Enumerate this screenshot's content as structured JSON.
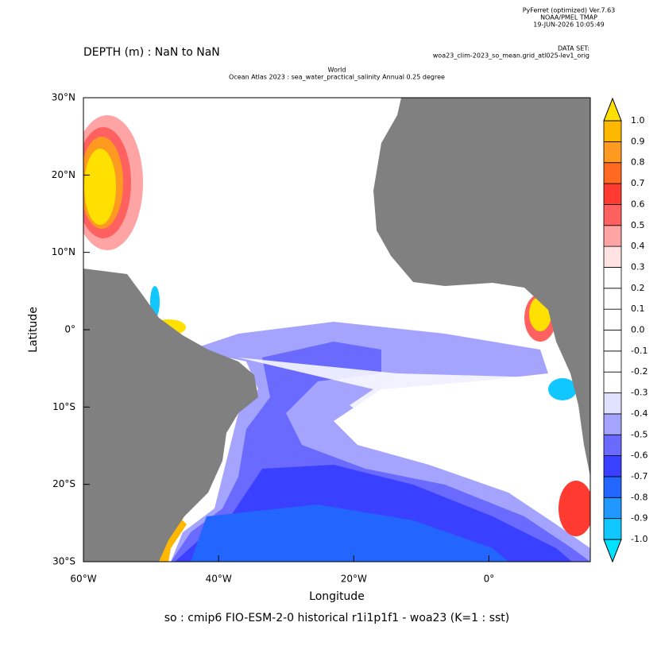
{
  "chart_data": {
    "type": "map",
    "header": {
      "software": "PyFerret (optimized) Ver.7.63",
      "org": "NOAA/PMEL TMAP",
      "timestamp": "19-JUN-2026 10:05:49",
      "dataset_label": "DATA SET:",
      "dataset": "woa23_clim-2023_so_mean.grid_atl025-lev1_orig",
      "depth": "DEPTH (m) : NaN to NaN",
      "title_line1": "World",
      "title_line2": "Ocean Atlas 2023 : sea_water_practical_salinity Annual  0.25 degree"
    },
    "title": "so : cmip6 FIO-ESM-2-0 historical r1i1p1f1 - woa23  (K=1 : sst)",
    "x_label": "Longitude",
    "y_label": "Latitude",
    "xlim": [
      -60,
      15
    ],
    "ylim": [
      -30,
      30
    ],
    "xticks": [
      {
        "value": -60,
        "label": "60°W"
      },
      {
        "value": -40,
        "label": "40°W"
      },
      {
        "value": -20,
        "label": "20°W"
      },
      {
        "value": 0,
        "label": "0°"
      }
    ],
    "yticks": [
      {
        "value": 30,
        "label": "30°N"
      },
      {
        "value": 20,
        "label": "20°N"
      },
      {
        "value": 10,
        "label": "10°N"
      },
      {
        "value": 0,
        "label": "0°"
      },
      {
        "value": -10,
        "label": "10°S"
      },
      {
        "value": -20,
        "label": "20°S"
      },
      {
        "value": -30,
        "label": "30°S"
      }
    ],
    "colorbar": {
      "levels": [
        {
          "value": -1.0,
          "label": "-1.0"
        },
        {
          "value": -0.9,
          "label": "-0.9"
        },
        {
          "value": -0.8,
          "label": "-0.8"
        },
        {
          "value": -0.7,
          "label": "-0.7"
        },
        {
          "value": -0.6,
          "label": "-0.6"
        },
        {
          "value": -0.5,
          "label": "-0.5"
        },
        {
          "value": -0.4,
          "label": "-0.4"
        },
        {
          "value": -0.3,
          "label": "-0.3"
        },
        {
          "value": -0.2,
          "label": "-0.2"
        },
        {
          "value": -0.1,
          "label": "-0.1"
        },
        {
          "value": 0.0,
          "label": "0.0"
        },
        {
          "value": 0.1,
          "label": "0.1"
        },
        {
          "value": 0.2,
          "label": "0.2"
        },
        {
          "value": 0.3,
          "label": "0.3"
        },
        {
          "value": 0.4,
          "label": "0.4"
        },
        {
          "value": 0.5,
          "label": "0.5"
        },
        {
          "value": 0.6,
          "label": "0.6"
        },
        {
          "value": 0.7,
          "label": "0.7"
        },
        {
          "value": 0.8,
          "label": "0.8"
        },
        {
          "value": 0.9,
          "label": "0.9"
        },
        {
          "value": 1.0,
          "label": "1.0"
        }
      ],
      "colors": [
        "#00e0ff",
        "#10c8ff",
        "#2098ff",
        "#2266ff",
        "#3a40ff",
        "#6a6aff",
        "#a4a4ff",
        "#e0e0ff",
        "#ffffff",
        "#ffffff",
        "#ffffff",
        "#ffffff",
        "#ffffff",
        "#ffffff",
        "#ffe2e2",
        "#ffa4a4",
        "#ff6060",
        "#ff3a30",
        "#ff6a20",
        "#ff9a20",
        "#ffb800",
        "#ffe000"
      ]
    }
  }
}
